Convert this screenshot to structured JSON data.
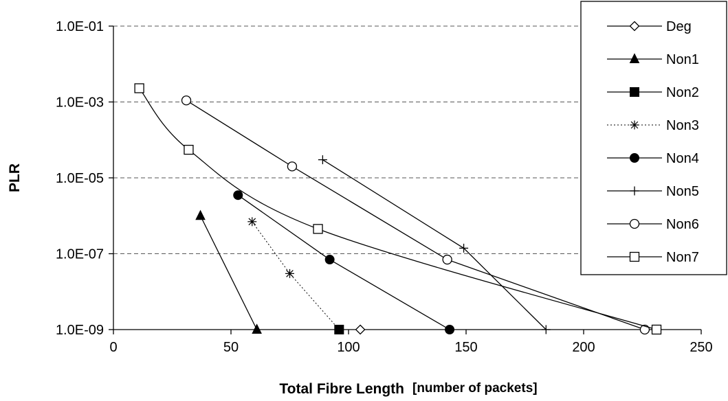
{
  "chart_data": {
    "type": "line",
    "title": "",
    "xlabel": "Total Fibre Length",
    "xlabel_unit": "[number of packets]",
    "ylabel": "PLR",
    "xlim": [
      0,
      250
    ],
    "ylim": [
      1e-09,
      0.1
    ],
    "y_scale": "log",
    "x_ticks": [
      0,
      50,
      100,
      150,
      200,
      250
    ],
    "x_tick_labels": [
      "0",
      "50",
      "100",
      "150",
      "200",
      "250"
    ],
    "y_ticks": [
      1e-09,
      1e-07,
      1e-05,
      0.001,
      0.1
    ],
    "y_tick_labels": [
      "1.0E-09",
      "1.0E-07",
      "1.0E-05",
      "1.0E-03",
      "1.0E-01"
    ],
    "grid": "horizontal dashed",
    "legend_position": "top-right",
    "series": [
      {
        "name": "Deg",
        "marker": "diamond-open",
        "line": "solid",
        "smooth": false,
        "points": [
          [
            105,
            1e-09
          ]
        ]
      },
      {
        "name": "Non1",
        "marker": "triangle-filled",
        "line": "solid",
        "smooth": false,
        "points": [
          [
            37,
            1e-06
          ],
          [
            61,
            1e-09
          ]
        ]
      },
      {
        "name": "Non2",
        "marker": "square-filled",
        "line": "solid",
        "smooth": false,
        "points": [
          [
            96,
            1e-09
          ]
        ]
      },
      {
        "name": "Non3",
        "marker": "star",
        "line": "dotted",
        "smooth": false,
        "points": [
          [
            59,
            7e-07
          ],
          [
            75,
            3e-08
          ],
          [
            96,
            1e-09
          ]
        ]
      },
      {
        "name": "Non4",
        "marker": "circle-filled",
        "line": "solid",
        "smooth": false,
        "points": [
          [
            53,
            3.5e-06
          ],
          [
            92,
            7e-08
          ],
          [
            143,
            1e-09
          ]
        ]
      },
      {
        "name": "Non5",
        "marker": "plus",
        "line": "solid",
        "smooth": false,
        "points": [
          [
            89,
            3e-05
          ],
          [
            149,
            1.4e-07
          ],
          [
            184,
            1e-09
          ]
        ]
      },
      {
        "name": "Non6",
        "marker": "circle-open",
        "line": "solid",
        "smooth": false,
        "points": [
          [
            31,
            0.0011
          ],
          [
            76,
            2e-05
          ],
          [
            142,
            7e-08
          ],
          [
            226,
            1e-09
          ]
        ]
      },
      {
        "name": "Non7",
        "marker": "square-open",
        "line": "solid",
        "smooth": true,
        "points": [
          [
            11,
            0.0023
          ],
          [
            32,
            5.5e-05
          ],
          [
            87,
            4.5e-07
          ],
          [
            231,
            1e-09
          ]
        ]
      }
    ]
  }
}
